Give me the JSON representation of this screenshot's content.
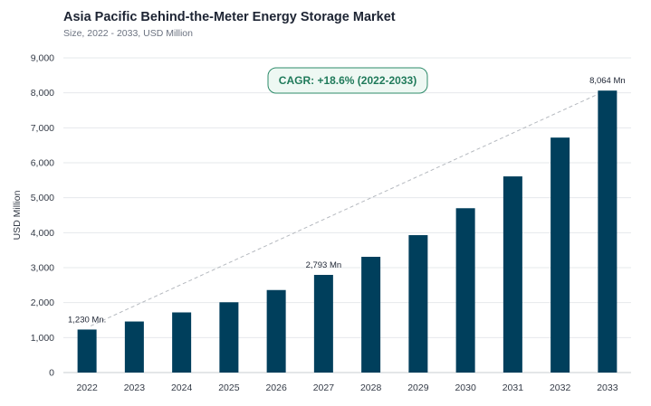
{
  "header": {
    "title": "Asia Pacific Behind-the-Meter Energy Storage Market",
    "subtitle": "Size, 2022 - 2033, USD Million"
  },
  "cagr_label": "CAGR: +18.6% (2022-2033)",
  "colors": {
    "bar": "#003f5c",
    "cagr_border": "#2e8b6a",
    "cagr_fill": "#eef8f3",
    "trend_line": "#b5b9bf",
    "grid": "#e6e8eb"
  },
  "chart_data": {
    "type": "bar",
    "title": "Asia Pacific Behind-the-Meter Energy Storage Market",
    "subtitle": "Size, 2022 - 2033, USD Million",
    "ylabel": "USD Million",
    "xlabel": "",
    "ylim": [
      0,
      9000
    ],
    "yticks": [
      0,
      1000,
      2000,
      3000,
      4000,
      5000,
      6000,
      7000,
      8000,
      9000
    ],
    "ytick_labels": [
      "0",
      "1,000",
      "2,000",
      "3,000",
      "4,000",
      "5,000",
      "6,000",
      "7,000",
      "8,000",
      "9,000"
    ],
    "grid": true,
    "categories": [
      "2022",
      "2023",
      "2024",
      "2025",
      "2026",
      "2027",
      "2028",
      "2029",
      "2030",
      "2031",
      "2032",
      "2033"
    ],
    "values": [
      1230,
      1460,
      1720,
      2010,
      2360,
      2793,
      3310,
      3930,
      4700,
      5610,
      6720,
      8064
    ],
    "data_labels": [
      {
        "index": 0,
        "text": "1,230 Mn."
      },
      {
        "index": 5,
        "text": "2,793 Mn"
      },
      {
        "index": 11,
        "text": "8,064 Mn"
      }
    ],
    "trend_line": {
      "from_index": 0,
      "to_index": 11,
      "style": "dashed"
    }
  }
}
